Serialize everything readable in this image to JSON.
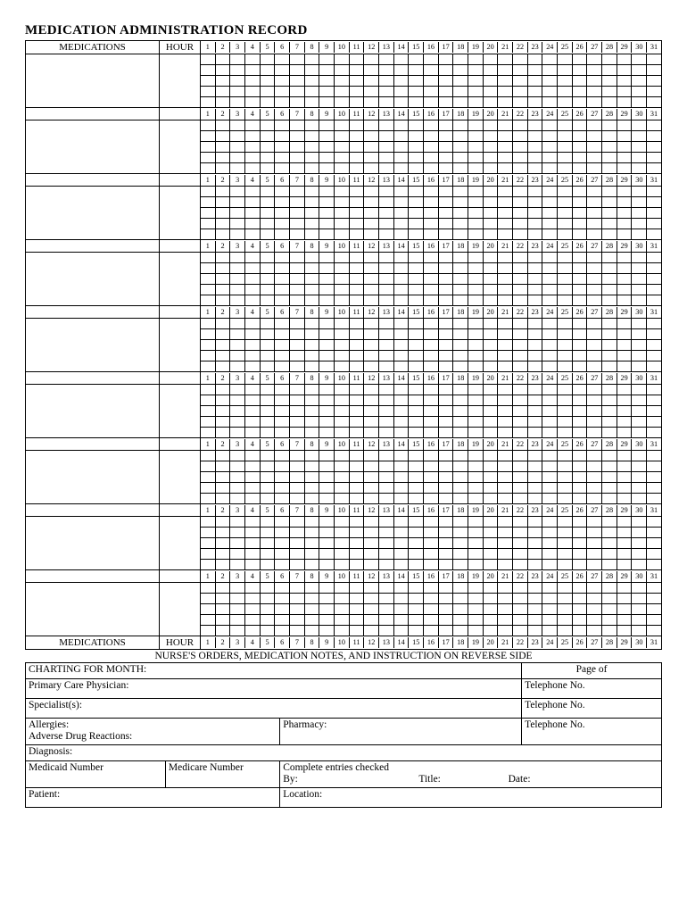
{
  "title": "MEDICATION ADMINISTRATION RECORD",
  "headers": {
    "medications": "MEDICATIONS",
    "hour": "HOUR"
  },
  "days": [
    "1",
    "2",
    "3",
    "4",
    "5",
    "6",
    "7",
    "8",
    "9",
    "10",
    "11",
    "12",
    "13",
    "14",
    "15",
    "16",
    "17",
    "18",
    "19",
    "20",
    "21",
    "22",
    "23",
    "24",
    "25",
    "26",
    "27",
    "28",
    "29",
    "30",
    "31"
  ],
  "medication_block_count": 9,
  "rows_per_block": 5,
  "reverse_note": "NURSE'S ORDERS, MEDICATION NOTES, AND INSTRUCTION ON REVERSE SIDE",
  "bottom": {
    "charting_for_month": "CHARTING FOR MONTH:",
    "page_of": "Page     of",
    "primary_care": "Primary Care Physician:",
    "telephone": "Telephone No.",
    "specialists": "Specialist(s):",
    "allergies": "Allergies:",
    "adverse": "Adverse Drug Reactions:",
    "pharmacy": "Pharmacy:",
    "diagnosis": "Diagnosis:",
    "medicaid": "Medicaid Number",
    "medicare": "Medicare Number",
    "complete_entries": "Complete entries checked",
    "by": "By:",
    "title_field": "Title:",
    "date": "Date:",
    "patient": "Patient:",
    "location": "Location:"
  },
  "colors": {
    "text": "#000000",
    "border": "#000000",
    "background": "#ffffff"
  }
}
